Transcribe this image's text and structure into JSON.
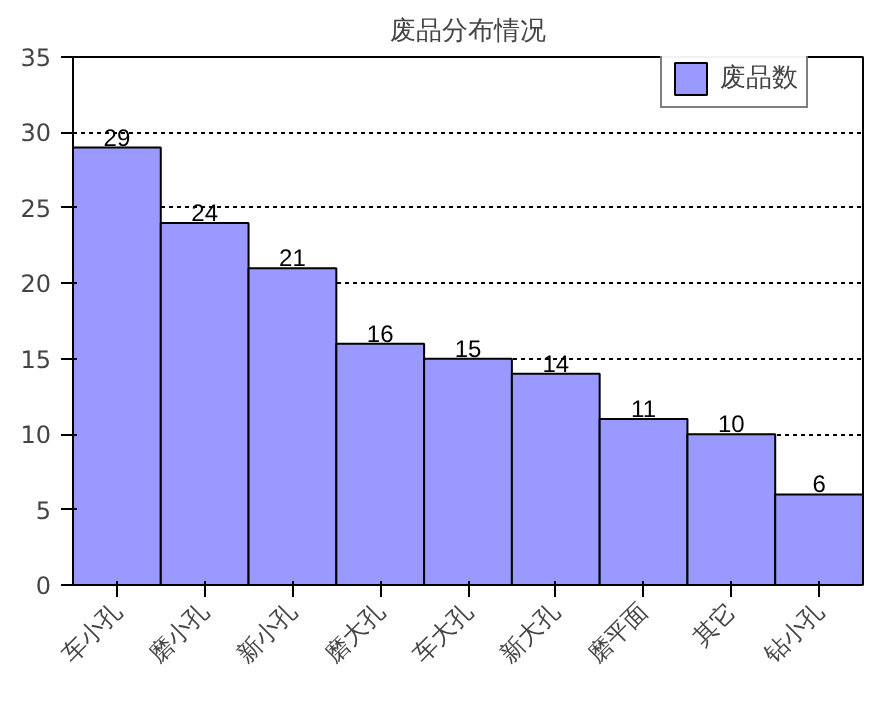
{
  "chart_data": {
    "type": "bar",
    "title": "废品分布情况",
    "categories": [
      "车小孔",
      "磨小孔",
      "新小孔",
      "磨大孔",
      "车大孔",
      "新大孔",
      "磨平面",
      "其它",
      "钻小孔"
    ],
    "series": [
      {
        "name": "废品数",
        "color": "#9999ff",
        "values": [
          29,
          24,
          21,
          16,
          15,
          14,
          11,
          10,
          6
        ]
      }
    ],
    "ylim": [
      0,
      35
    ],
    "yticks": [
      0,
      5,
      10,
      15,
      20,
      25,
      30,
      35
    ],
    "grid": "y",
    "legend": "top right",
    "data_labels": true
  }
}
